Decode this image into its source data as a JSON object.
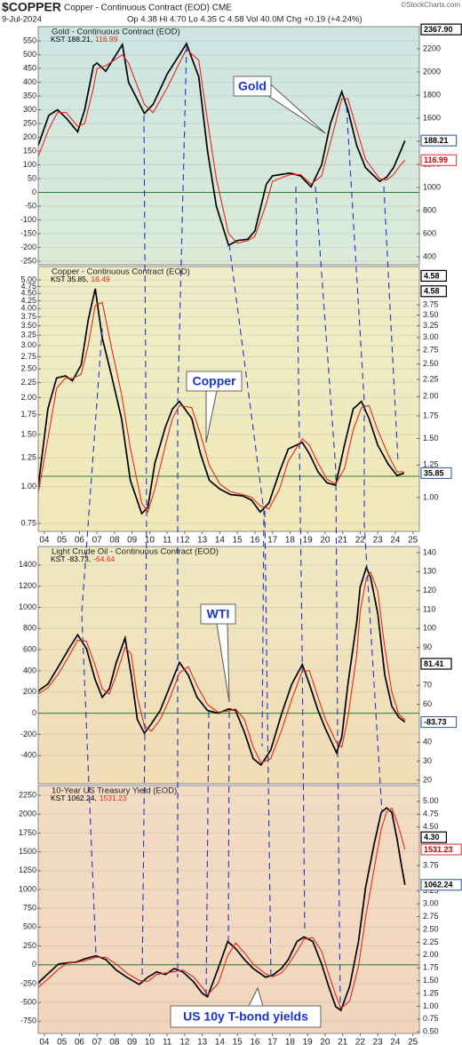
{
  "header": {
    "symbol": "$COPPER",
    "name": "Copper - Continuous Contract (EOD) CME",
    "date": "9-Jul-2024",
    "quote": "Op 4.38 Hi 4.70 Lo 4.35 C 4.58 Vol 40.0M Chg +0.19 (+4.24%)",
    "copyright": "©StockCharts.com"
  },
  "chart_data": [
    {
      "type": "line",
      "title": "Gold - Continuous Contract (EOD)",
      "annotation": "Gold",
      "xlim": [
        2003.65,
        2025.37
      ],
      "ylim": [
        -263,
        602
      ],
      "y2lim": [
        331,
        2392
      ],
      "zero_line": true,
      "grid": true,
      "yticks": [
        550,
        500,
        450,
        400,
        350,
        300,
        250,
        200,
        150,
        100,
        50,
        0,
        -50,
        -100,
        -150,
        -200,
        -250
      ],
      "y2ticks": [
        2200,
        2000,
        1800,
        1600,
        1400,
        1200,
        1000,
        800,
        600,
        400
      ],
      "price_tags": [
        {
          "value": 2367.9,
          "label": "2367.90",
          "axis": "y2"
        }
      ],
      "x": [
        2003.65,
        2004.25,
        2004.75,
        2005.25,
        2005.9,
        2006.3,
        2006.8,
        2007.0,
        2007.5,
        2008.45,
        2008.8,
        2009.7,
        2010.2,
        2011.0,
        2011.7,
        2012.1,
        2012.8,
        2013.3,
        2013.8,
        2014.5,
        2015.0,
        2015.6,
        2016.0,
        2016.65,
        2017.0,
        2018.0,
        2018.6,
        2019.2,
        2019.8,
        2020.3,
        2020.95,
        2021.3,
        2021.8,
        2022.3,
        2023.1,
        2023.5,
        2023.9,
        2024.3,
        2024.55
      ],
      "series": [
        {
          "name": "KST 188.21,",
          "color": "#000000",
          "end_label": "188.21",
          "values": [
            170,
            280,
            300,
            270,
            220,
            300,
            460,
            470,
            440,
            537,
            400,
            287,
            320,
            430,
            500,
            540,
            420,
            150,
            -50,
            -192,
            -175,
            -170,
            -140,
            30,
            60,
            70,
            60,
            20,
            100,
            250,
            366,
            300,
            170,
            90,
            40,
            55,
            90,
            150,
            188.21
          ]
        },
        {
          "name": "116.99",
          "color": "#e8251b",
          "end_label": "116.99",
          "values": [
            130,
            230,
            290,
            290,
            240,
            250,
            380,
            450,
            460,
            500,
            470,
            320,
            290,
            380,
            470,
            520,
            480,
            260,
            50,
            -150,
            -185,
            -175,
            -160,
            -40,
            40,
            65,
            65,
            30,
            60,
            180,
            340,
            340,
            230,
            120,
            50,
            45,
            65,
            100,
            116.99
          ]
        }
      ]
    },
    {
      "type": "line",
      "title": "Copper - Continuous Contract (EOD)",
      "annotation": "Copper",
      "xlim": [
        2003.65,
        2025.37
      ],
      "ylim": [
        0.705,
        5.55
      ],
      "y2lim": [
        0.793,
        4.88
      ],
      "log_scale": true,
      "grid": true,
      "yticks": [
        {
          "value": 5,
          "label": "5.00"
        },
        {
          "value": 4.75,
          "label": "4.75"
        },
        {
          "value": 4.5,
          "label": "4.50"
        },
        {
          "value": 4.25,
          "label": "4.25"
        },
        {
          "value": 4,
          "label": "4.00"
        },
        {
          "value": 3.75,
          "label": "3.75"
        },
        {
          "value": 3.5,
          "label": "3.50"
        },
        {
          "value": 3.25,
          "label": "3.25"
        },
        {
          "value": 3,
          "label": "3.00"
        },
        {
          "value": 2.75,
          "label": "2.75"
        },
        {
          "value": 2.5,
          "label": "2.50"
        },
        {
          "value": 2.25,
          "label": "2.25"
        },
        {
          "value": 2,
          "label": "2.00"
        },
        {
          "value": 1.75,
          "label": "1.75"
        },
        {
          "value": 1.5,
          "label": "1.50"
        },
        {
          "value": 1.25,
          "label": "1.25"
        },
        {
          "value": 1,
          "label": "1.00"
        },
        {
          "value": 0.75,
          "label": "0.75"
        }
      ],
      "y2ticks": [
        {
          "value": 3.75,
          "label": "3.75"
        },
        {
          "value": 3.5,
          "label": "3.50"
        },
        {
          "value": 3.25,
          "label": "3.25"
        },
        {
          "value": 3,
          "label": "3.00"
        },
        {
          "value": 2.75,
          "label": "2.75"
        },
        {
          "value": 2.5,
          "label": "2.50"
        },
        {
          "value": 2.25,
          "label": "2.25"
        },
        {
          "value": 2,
          "label": "2.00"
        },
        {
          "value": 1.75,
          "label": "1.75"
        },
        {
          "value": 1.5,
          "label": "1.50"
        },
        {
          "value": 1.25,
          "label": "1.25"
        },
        {
          "value": 1,
          "label": "1.00"
        }
      ],
      "price_tags": [
        {
          "value": 4.58,
          "label": "4.58",
          "axis": "y2"
        },
        {
          "value": 4.58,
          "label": "4.58",
          "axis": "y"
        }
      ],
      "xticks": [
        {
          "value": 2004,
          "label": "04"
        },
        {
          "value": 2005,
          "label": "05"
        },
        {
          "value": 2006,
          "label": "06"
        },
        {
          "value": 2007,
          "label": "07"
        },
        {
          "value": 2008,
          "label": "08"
        },
        {
          "value": 2009,
          "label": "09"
        },
        {
          "value": 2010,
          "label": "10"
        },
        {
          "value": 2011,
          "label": "11"
        },
        {
          "value": 2012,
          "label": "12"
        },
        {
          "value": 2013,
          "label": "13"
        },
        {
          "value": 2014,
          "label": "14"
        },
        {
          "value": 2015,
          "label": "15"
        },
        {
          "value": 2016,
          "label": "16"
        },
        {
          "value": 2017,
          "label": "17"
        },
        {
          "value": 2018,
          "label": "18"
        },
        {
          "value": 2019,
          "label": "19"
        },
        {
          "value": 2020,
          "label": "20"
        },
        {
          "value": 2021,
          "label": "21"
        },
        {
          "value": 2022,
          "label": "22"
        },
        {
          "value": 2023,
          "label": "23"
        },
        {
          "value": 2024,
          "label": "24"
        },
        {
          "value": 2025,
          "label": "25"
        }
      ],
      "x": [
        2003.65,
        2004.2,
        2004.7,
        2005.2,
        2005.6,
        2006.1,
        2006.5,
        2006.9,
        2007.3,
        2007.8,
        2008.4,
        2008.9,
        2009.55,
        2009.9,
        2010.3,
        2010.9,
        2011.3,
        2011.7,
        2012.4,
        2012.9,
        2013.4,
        2014.0,
        2014.6,
        2015.3,
        2015.8,
        2016.3,
        2016.8,
        2017.4,
        2017.9,
        2018.7,
        2019.1,
        2019.6,
        2020.1,
        2020.6,
        2021.1,
        2021.6,
        2022.07,
        2022.5,
        2023.0,
        2023.6,
        2024.1,
        2024.5
      ],
      "series": [
        {
          "name": "KST 35.85,",
          "color": "#000000",
          "end_label": "35.85",
          "values": [
            1.0,
            1.83,
            2.33,
            2.37,
            2.28,
            2.58,
            3.66,
            4.67,
            3.18,
            2.41,
            1.7,
            1.05,
            0.81,
            0.85,
            1.2,
            1.59,
            1.83,
            1.94,
            1.7,
            1.29,
            1.05,
            0.98,
            0.94,
            0.93,
            0.9,
            0.82,
            0.88,
            1.12,
            1.34,
            1.41,
            1.29,
            1.12,
            1.03,
            1.01,
            1.38,
            1.83,
            1.94,
            1.7,
            1.38,
            1.19,
            1.09,
            1.11
          ]
        },
        {
          "name": "16.49",
          "color": "#e8251b",
          "values": [
            0.95,
            1.45,
            2.15,
            2.33,
            2.32,
            2.4,
            3.0,
            4.1,
            4.2,
            3.0,
            2.05,
            1.35,
            0.88,
            0.82,
            0.98,
            1.38,
            1.7,
            1.88,
            1.85,
            1.5,
            1.18,
            1.02,
            0.96,
            0.94,
            0.92,
            0.86,
            0.84,
            0.98,
            1.22,
            1.45,
            1.38,
            1.2,
            1.06,
            1.02,
            1.15,
            1.55,
            1.85,
            1.88,
            1.55,
            1.28,
            1.12,
            1.12
          ]
        }
      ]
    },
    {
      "type": "line",
      "title": "Light Crude Oil - Continuous Contract (EOD)",
      "annotation": "WTI",
      "xlim": [
        2003.65,
        2025.37
      ],
      "ylim": [
        -667,
        1575
      ],
      "y2lim": [
        18.1,
        143.3
      ],
      "zero_line": true,
      "grid": true,
      "yticks": [
        1400,
        1200,
        1000,
        800,
        600,
        400,
        200,
        0,
        -200,
        -400
      ],
      "y2ticks": [
        140,
        130,
        120,
        110,
        100,
        90,
        70,
        60,
        40,
        30,
        20
      ],
      "price_tags": [
        {
          "value": 81.41,
          "label": "81.41",
          "axis": "y2"
        }
      ],
      "x": [
        2003.65,
        2004.2,
        2004.8,
        2005.4,
        2005.9,
        2006.4,
        2006.9,
        2007.3,
        2007.7,
        2008.1,
        2008.6,
        2008.95,
        2009.3,
        2009.7,
        2010.1,
        2010.6,
        2011.1,
        2011.7,
        2012.2,
        2012.7,
        2013.3,
        2013.9,
        2014.5,
        2014.9,
        2015.4,
        2015.9,
        2016.35,
        2016.9,
        2017.5,
        2018.1,
        2018.7,
        2019.1,
        2019.6,
        2020.0,
        2020.65,
        2020.95,
        2021.3,
        2021.8,
        2022.0,
        2022.35,
        2022.6,
        2023.0,
        2023.4,
        2023.8,
        2024.2,
        2024.55
      ],
      "series": [
        {
          "name": "KST -83.73,",
          "color": "#000000",
          "end_label": "-83.73",
          "values": [
            210,
            275,
            440,
            610,
            740,
            610,
            315,
            150,
            230,
            480,
            710,
            360,
            -60,
            -190,
            -100,
            25,
            230,
            480,
            360,
            150,
            25,
            0,
            40,
            25,
            -180,
            -430,
            -490,
            -350,
            -15,
            275,
            460,
            275,
            25,
            -140,
            -375,
            -225,
            275,
            860,
            1190,
            1380,
            1275,
            940,
            360,
            65,
            -40,
            -83.73
          ]
        },
        {
          "name": "-64.64",
          "color": "#e8251b",
          "values": [
            180,
            240,
            370,
            540,
            690,
            680,
            450,
            230,
            180,
            360,
            620,
            560,
            150,
            -120,
            -170,
            -60,
            120,
            380,
            440,
            260,
            80,
            10,
            20,
            40,
            -60,
            -320,
            -470,
            -430,
            -170,
            130,
            400,
            400,
            150,
            -50,
            -280,
            -320,
            -40,
            550,
            960,
            1280,
            1330,
            1150,
            620,
            200,
            -10,
            -64.64
          ]
        }
      ]
    },
    {
      "type": "line",
      "title": "10-Year US Treasury Yield (EOD)",
      "annotation": "US 10y T-bond yields",
      "xlim": [
        2003.65,
        2025.37
      ],
      "ylim": [
        -912,
        2381
      ],
      "y2lim": [
        0.47,
        5.31
      ],
      "zero_line": true,
      "grid": true,
      "yticks": [
        2250,
        2000,
        1750,
        1500,
        1250,
        1000,
        750,
        500,
        250,
        0,
        -250,
        -500,
        -750
      ],
      "y2ticks": [
        {
          "value": 5,
          "label": "5.00"
        },
        {
          "value": 4.75,
          "label": "4.75"
        },
        {
          "value": 4.5,
          "label": "4.50"
        },
        {
          "value": 3.75,
          "label": "3.75"
        },
        {
          "value": 3.25,
          "label": "3.25"
        },
        {
          "value": 3,
          "label": "3.00"
        },
        {
          "value": 2.75,
          "label": "2.75"
        },
        {
          "value": 2.5,
          "label": "2.50"
        },
        {
          "value": 2.25,
          "label": "2.25"
        },
        {
          "value": 2,
          "label": "2.00"
        },
        {
          "value": 1.75,
          "label": "1.75"
        },
        {
          "value": 1.5,
          "label": "1.50"
        },
        {
          "value": 1.25,
          "label": "1.25"
        },
        {
          "value": 1,
          "label": "1.00"
        },
        {
          "value": 0.75,
          "label": "0.75"
        },
        {
          "value": 0.5,
          "label": "0.50"
        }
      ],
      "price_tags": [
        {
          "value": 4.3,
          "label": "4.30",
          "axis": "y2"
        }
      ],
      "xticks": [
        {
          "value": 2004,
          "label": "04"
        },
        {
          "value": 2005,
          "label": "05"
        },
        {
          "value": 2006,
          "label": "06"
        },
        {
          "value": 2007,
          "label": "07"
        },
        {
          "value": 2008,
          "label": "08"
        },
        {
          "value": 2009,
          "label": "09"
        },
        {
          "value": 2010,
          "label": "10"
        },
        {
          "value": 2011,
          "label": "11"
        },
        {
          "value": 2012,
          "label": "12"
        },
        {
          "value": 2013,
          "label": "13"
        },
        {
          "value": 2014,
          "label": "14"
        },
        {
          "value": 2015,
          "label": "15"
        },
        {
          "value": 2016,
          "label": "16"
        },
        {
          "value": 2017,
          "label": "17"
        },
        {
          "value": 2018,
          "label": "18"
        },
        {
          "value": 2019,
          "label": "19"
        },
        {
          "value": 2020,
          "label": "20"
        },
        {
          "value": 2021,
          "label": "21"
        },
        {
          "value": 2022,
          "label": "22"
        },
        {
          "value": 2023,
          "label": "23"
        },
        {
          "value": 2024,
          "label": "24"
        },
        {
          "value": 2025,
          "label": "25"
        }
      ],
      "x": [
        2003.65,
        2004.2,
        2004.8,
        2005.3,
        2005.8,
        2006.3,
        2006.95,
        2007.5,
        2008.1,
        2008.7,
        2009.4,
        2009.9,
        2010.4,
        2010.9,
        2011.4,
        2011.9,
        2012.5,
        2013.0,
        2013.3,
        2013.9,
        2014.45,
        2014.9,
        2015.4,
        2015.9,
        2016.6,
        2017.0,
        2017.5,
        2017.9,
        2018.4,
        2018.8,
        2019.3,
        2019.8,
        2020.2,
        2020.6,
        2020.9,
        2021.4,
        2021.9,
        2022.3,
        2022.8,
        2023.2,
        2023.5,
        2023.8,
        2024.1,
        2024.35,
        2024.55
      ],
      "series": [
        {
          "name": "KST 1062.24,",
          "color": "#000000",
          "end_label": "1062.24",
          "values": [
            -240,
            -120,
            10,
            25,
            35,
            80,
            120,
            70,
            -70,
            -165,
            -260,
            -165,
            -95,
            -130,
            -50,
            -95,
            -225,
            -380,
            -425,
            -50,
            310,
            215,
            70,
            -50,
            -165,
            -140,
            -50,
            70,
            310,
            370,
            310,
            10,
            -285,
            -555,
            -605,
            -285,
            310,
            1020,
            1610,
            2025,
            2085,
            2025,
            1670,
            1315,
            1062.24
          ]
        },
        {
          "name": "1531.23",
          "color": "#e8251b",
          "end_label": "1531.23",
          "values": [
            -300,
            -190,
            -60,
            20,
            30,
            55,
            100,
            100,
            10,
            -110,
            -210,
            -220,
            -130,
            -110,
            -90,
            -70,
            -160,
            -300,
            -400,
            -250,
            120,
            290,
            160,
            10,
            -120,
            -160,
            -110,
            0,
            180,
            340,
            360,
            180,
            -120,
            -400,
            -580,
            -480,
            -20,
            620,
            1280,
            1800,
            2030,
            2080,
            1900,
            1700,
            1531.23
          ]
        }
      ]
    }
  ]
}
